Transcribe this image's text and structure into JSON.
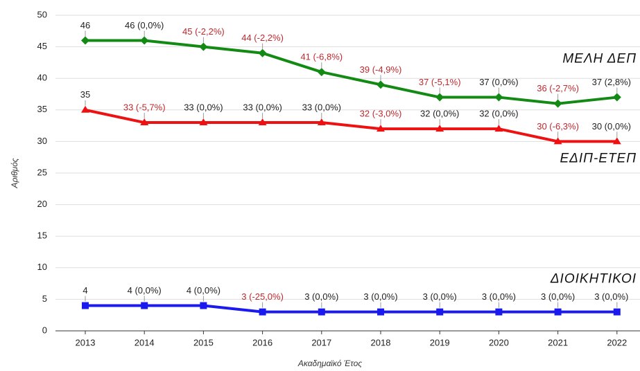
{
  "chart_data": {
    "type": "line",
    "x_label": "Ακαδημαϊκό Έτος",
    "y_label": "Αριθμός",
    "categories": [
      "2013",
      "2014",
      "2015",
      "2016",
      "2017",
      "2018",
      "2019",
      "2020",
      "2021",
      "2022"
    ],
    "ylim": [
      0,
      50
    ],
    "yticks": [
      0,
      5,
      10,
      15,
      20,
      25,
      30,
      35,
      40,
      45,
      50
    ],
    "grid": true,
    "series": [
      {
        "name": "ΜΕΛΗ ΔΕΠ",
        "color": "#138a13",
        "marker": "diamond",
        "values": [
          46,
          46,
          45,
          44,
          41,
          39,
          37,
          37,
          36,
          37
        ],
        "value_labels": [
          "46",
          "46 (0,0%)",
          "45 (-2,2%)",
          "44 (-2,2%)",
          "41 (-6,8%)",
          "39 (-4,9%)",
          "37 (-5,1%)",
          "37 (0,0%)",
          "36 (-2,7%)",
          "37 (2,8%)"
        ]
      },
      {
        "name": "ΕΔΙΠ-ΕΤΕΠ",
        "color": "#ee1111",
        "marker": "triangle",
        "values": [
          35,
          33,
          33,
          33,
          33,
          32,
          32,
          32,
          30,
          30
        ],
        "value_labels": [
          "35",
          "33 (-5,7%)",
          "33 (0,0%)",
          "33 (0,0%)",
          "33 (0,0%)",
          "32 (-3,0%)",
          "32 (0,0%)",
          "32 (0,0%)",
          "30 (-6,3%)",
          "30 (0,0%)"
        ]
      },
      {
        "name": "ΔΙΟΙΚΗΤΙΚΟΙ",
        "color": "#1a1aee",
        "marker": "square",
        "values": [
          4,
          4,
          4,
          3,
          3,
          3,
          3,
          3,
          3,
          3
        ],
        "value_labels": [
          "4",
          "4 (0,0%)",
          "4 (0,0%)",
          "3 (-25,0%)",
          "3 (0,0%)",
          "3 (0,0%)",
          "3 (0,0%)",
          "3 (0,0%)",
          "3 (0,0%)",
          "3 (0,0%)"
        ]
      }
    ]
  }
}
